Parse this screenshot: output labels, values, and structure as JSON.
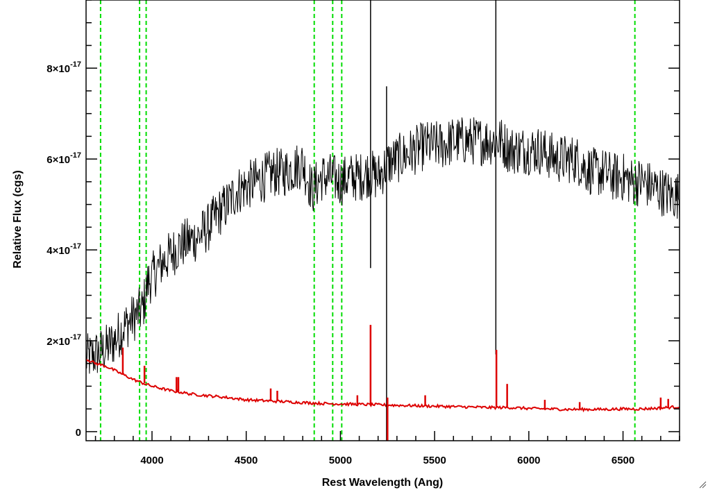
{
  "chart_data": {
    "type": "line",
    "title": "",
    "xlabel": "Rest Wavelength (Ang)",
    "ylabel": "Relative Flux (cgs)",
    "xlim": [
      3650,
      6800
    ],
    "ylim": [
      -2e-18,
      9.5e-17
    ],
    "x_ticks": [
      {
        "value": 4000,
        "label": "4000"
      },
      {
        "value": 4500,
        "label": "4500"
      },
      {
        "value": 5000,
        "label": "5000"
      },
      {
        "value": 5500,
        "label": "5500"
      },
      {
        "value": 6000,
        "label": "6000"
      },
      {
        "value": 6500,
        "label": "6500"
      }
    ],
    "y_ticks": [
      {
        "value": 0,
        "mantissa": "0",
        "exponent": ""
      },
      {
        "value": 2e-17,
        "mantissa": "2×10",
        "exponent": "-17"
      },
      {
        "value": 4e-17,
        "mantissa": "4×10",
        "exponent": "-17"
      },
      {
        "value": 6e-17,
        "mantissa": "6×10",
        "exponent": "-17"
      },
      {
        "value": 8e-17,
        "mantissa": "8×10",
        "exponent": "-17"
      }
    ],
    "grid": false,
    "vertical_markers": [
      {
        "x": 3727,
        "color": "#00dd00",
        "style": "dashed"
      },
      {
        "x": 3934,
        "color": "#00dd00",
        "style": "dashed"
      },
      {
        "x": 3969,
        "color": "#00dd00",
        "style": "dashed"
      },
      {
        "x": 4861,
        "color": "#00dd00",
        "style": "dashed"
      },
      {
        "x": 4959,
        "color": "#00dd00",
        "style": "dashed"
      },
      {
        "x": 5007,
        "color": "#00dd00",
        "style": "dashed"
      },
      {
        "x": 6563,
        "color": "#00dd00",
        "style": "dashed"
      }
    ],
    "series": [
      {
        "color": "#000000",
        "x": [
          3650,
          3700,
          3750,
          3800,
          3850,
          3900,
          3950,
          3980,
          4000,
          4050,
          4100,
          4150,
          4200,
          4250,
          4300,
          4350,
          4400,
          4450,
          4500,
          4550,
          4600,
          4650,
          4700,
          4750,
          4800,
          4850,
          4900,
          4950,
          5000,
          5050,
          5100,
          5150,
          5200,
          5250,
          5300,
          5350,
          5400,
          5450,
          5500,
          5550,
          5600,
          5650,
          5700,
          5750,
          5800,
          5850,
          5900,
          5950,
          6000,
          6050,
          6100,
          6150,
          6200,
          6250,
          6300,
          6350,
          6400,
          6450,
          6500,
          6550,
          6600,
          6650,
          6700,
          6750,
          6800
        ],
        "y": [
          1.6e-17,
          1.7e-17,
          1.8e-17,
          2e-17,
          2.3e-17,
          2.5e-17,
          2.7e-17,
          3.3e-17,
          3.4e-17,
          3.7e-17,
          3.9e-17,
          4.1e-17,
          4.2e-17,
          4.3e-17,
          4.5e-17,
          4.8e-17,
          5e-17,
          5.3e-17,
          5.4e-17,
          5.5e-17,
          5.6e-17,
          5.7e-17,
          5.7e-17,
          5.8e-17,
          5.9e-17,
          5.3e-17,
          5.6e-17,
          5.6e-17,
          5.5e-17,
          5.6e-17,
          5.6e-17,
          5.7e-17,
          5.6e-17,
          5.9e-17,
          6e-17,
          6.1e-17,
          6.2e-17,
          6.3e-17,
          6.3e-17,
          6.3e-17,
          6.4e-17,
          6.4e-17,
          6.4e-17,
          6.4e-17,
          6.4e-17,
          6.4e-17,
          6.2e-17,
          6.2e-17,
          6.2e-17,
          6.2e-17,
          6.1e-17,
          6e-17,
          6e-17,
          6e-17,
          5.8e-17,
          5.7e-17,
          5.7e-17,
          5.6e-17,
          5.6e-17,
          5.5e-17,
          5.5e-17,
          5.4e-17,
          5.3e-17,
          5.2e-17,
          5.2e-17
        ]
      },
      {
        "color": "#dd0000",
        "x": [
          3650,
          3700,
          3750,
          3800,
          3850,
          3900,
          3950,
          4000,
          4050,
          4100,
          4150,
          4200,
          4300,
          4400,
          4500,
          4600,
          4700,
          4800,
          4900,
          5000,
          5100,
          5200,
          5300,
          5400,
          5500,
          5600,
          5700,
          5800,
          5900,
          6000,
          6100,
          6200,
          6300,
          6400,
          6500,
          6600,
          6700,
          6800
        ],
        "y": [
          1.6e-17,
          1.5e-17,
          1.45e-17,
          1.35e-17,
          1.25e-17,
          1.15e-17,
          1.07e-17,
          1e-17,
          9.5e-18,
          9e-18,
          8.7e-18,
          8.3e-18,
          7.9e-18,
          7.5e-18,
          7e-18,
          6.8e-18,
          6.6e-18,
          6.4e-18,
          6.2e-18,
          6.1e-18,
          6e-18,
          5.9e-18,
          5.8e-18,
          5.7e-18,
          5.6e-18,
          5.5e-18,
          5.4e-18,
          5.3e-18,
          5.3e-18,
          5.1e-18,
          5e-18,
          4.9e-18,
          4.9e-18,
          4.9e-18,
          5e-18,
          5e-18,
          5.2e-18,
          5.5e-18
        ]
      }
    ],
    "spikes": [
      {
        "x": 5160,
        "top": 9.8e-17,
        "bottom": 3.6e-17,
        "color": "#000000"
      },
      {
        "x": 5245,
        "top": 7.6e-17,
        "bottom": -2e-18,
        "color": "#000000"
      },
      {
        "x": 5825,
        "top": 9.7e-17,
        "bottom": 1.7e-17,
        "color": "#000000"
      },
      {
        "x": 3845,
        "top": 1.85e-17,
        "bottom": 1.25e-17,
        "color": "#dd0000"
      },
      {
        "x": 3960,
        "top": 1.45e-17,
        "bottom": 1.07e-17,
        "color": "#dd0000"
      },
      {
        "x": 4130,
        "top": 1.2e-17,
        "bottom": 8.8e-18,
        "color": "#dd0000"
      },
      {
        "x": 4140,
        "top": 1.2e-17,
        "bottom": 8.7e-18,
        "color": "#dd0000"
      },
      {
        "x": 4630,
        "top": 9.5e-18,
        "bottom": 6.8e-18,
        "color": "#dd0000"
      },
      {
        "x": 4665,
        "top": 9e-18,
        "bottom": 6.7e-18,
        "color": "#dd0000"
      },
      {
        "x": 5090,
        "top": 8e-18,
        "bottom": 6e-18,
        "color": "#dd0000"
      },
      {
        "x": 5160,
        "top": 2.35e-17,
        "bottom": 5.9e-18,
        "color": "#dd0000"
      },
      {
        "x": 5250,
        "top": 7.5e-18,
        "bottom": -2e-18,
        "color": "#dd0000"
      },
      {
        "x": 5450,
        "top": 8e-18,
        "bottom": 5.6e-18,
        "color": "#dd0000"
      },
      {
        "x": 5828,
        "top": 1.8e-17,
        "bottom": 5.3e-18,
        "color": "#dd0000"
      },
      {
        "x": 5885,
        "top": 1.05e-17,
        "bottom": 5.3e-18,
        "color": "#dd0000"
      },
      {
        "x": 6085,
        "top": 7e-18,
        "bottom": 5e-18,
        "color": "#dd0000"
      },
      {
        "x": 6270,
        "top": 6.5e-18,
        "bottom": 4.9e-18,
        "color": "#dd0000"
      },
      {
        "x": 6700,
        "top": 7.5e-18,
        "bottom": 5.2e-18,
        "color": "#dd0000"
      },
      {
        "x": 6740,
        "top": 7.2e-18,
        "bottom": 5.3e-18,
        "color": "#dd0000"
      }
    ]
  }
}
